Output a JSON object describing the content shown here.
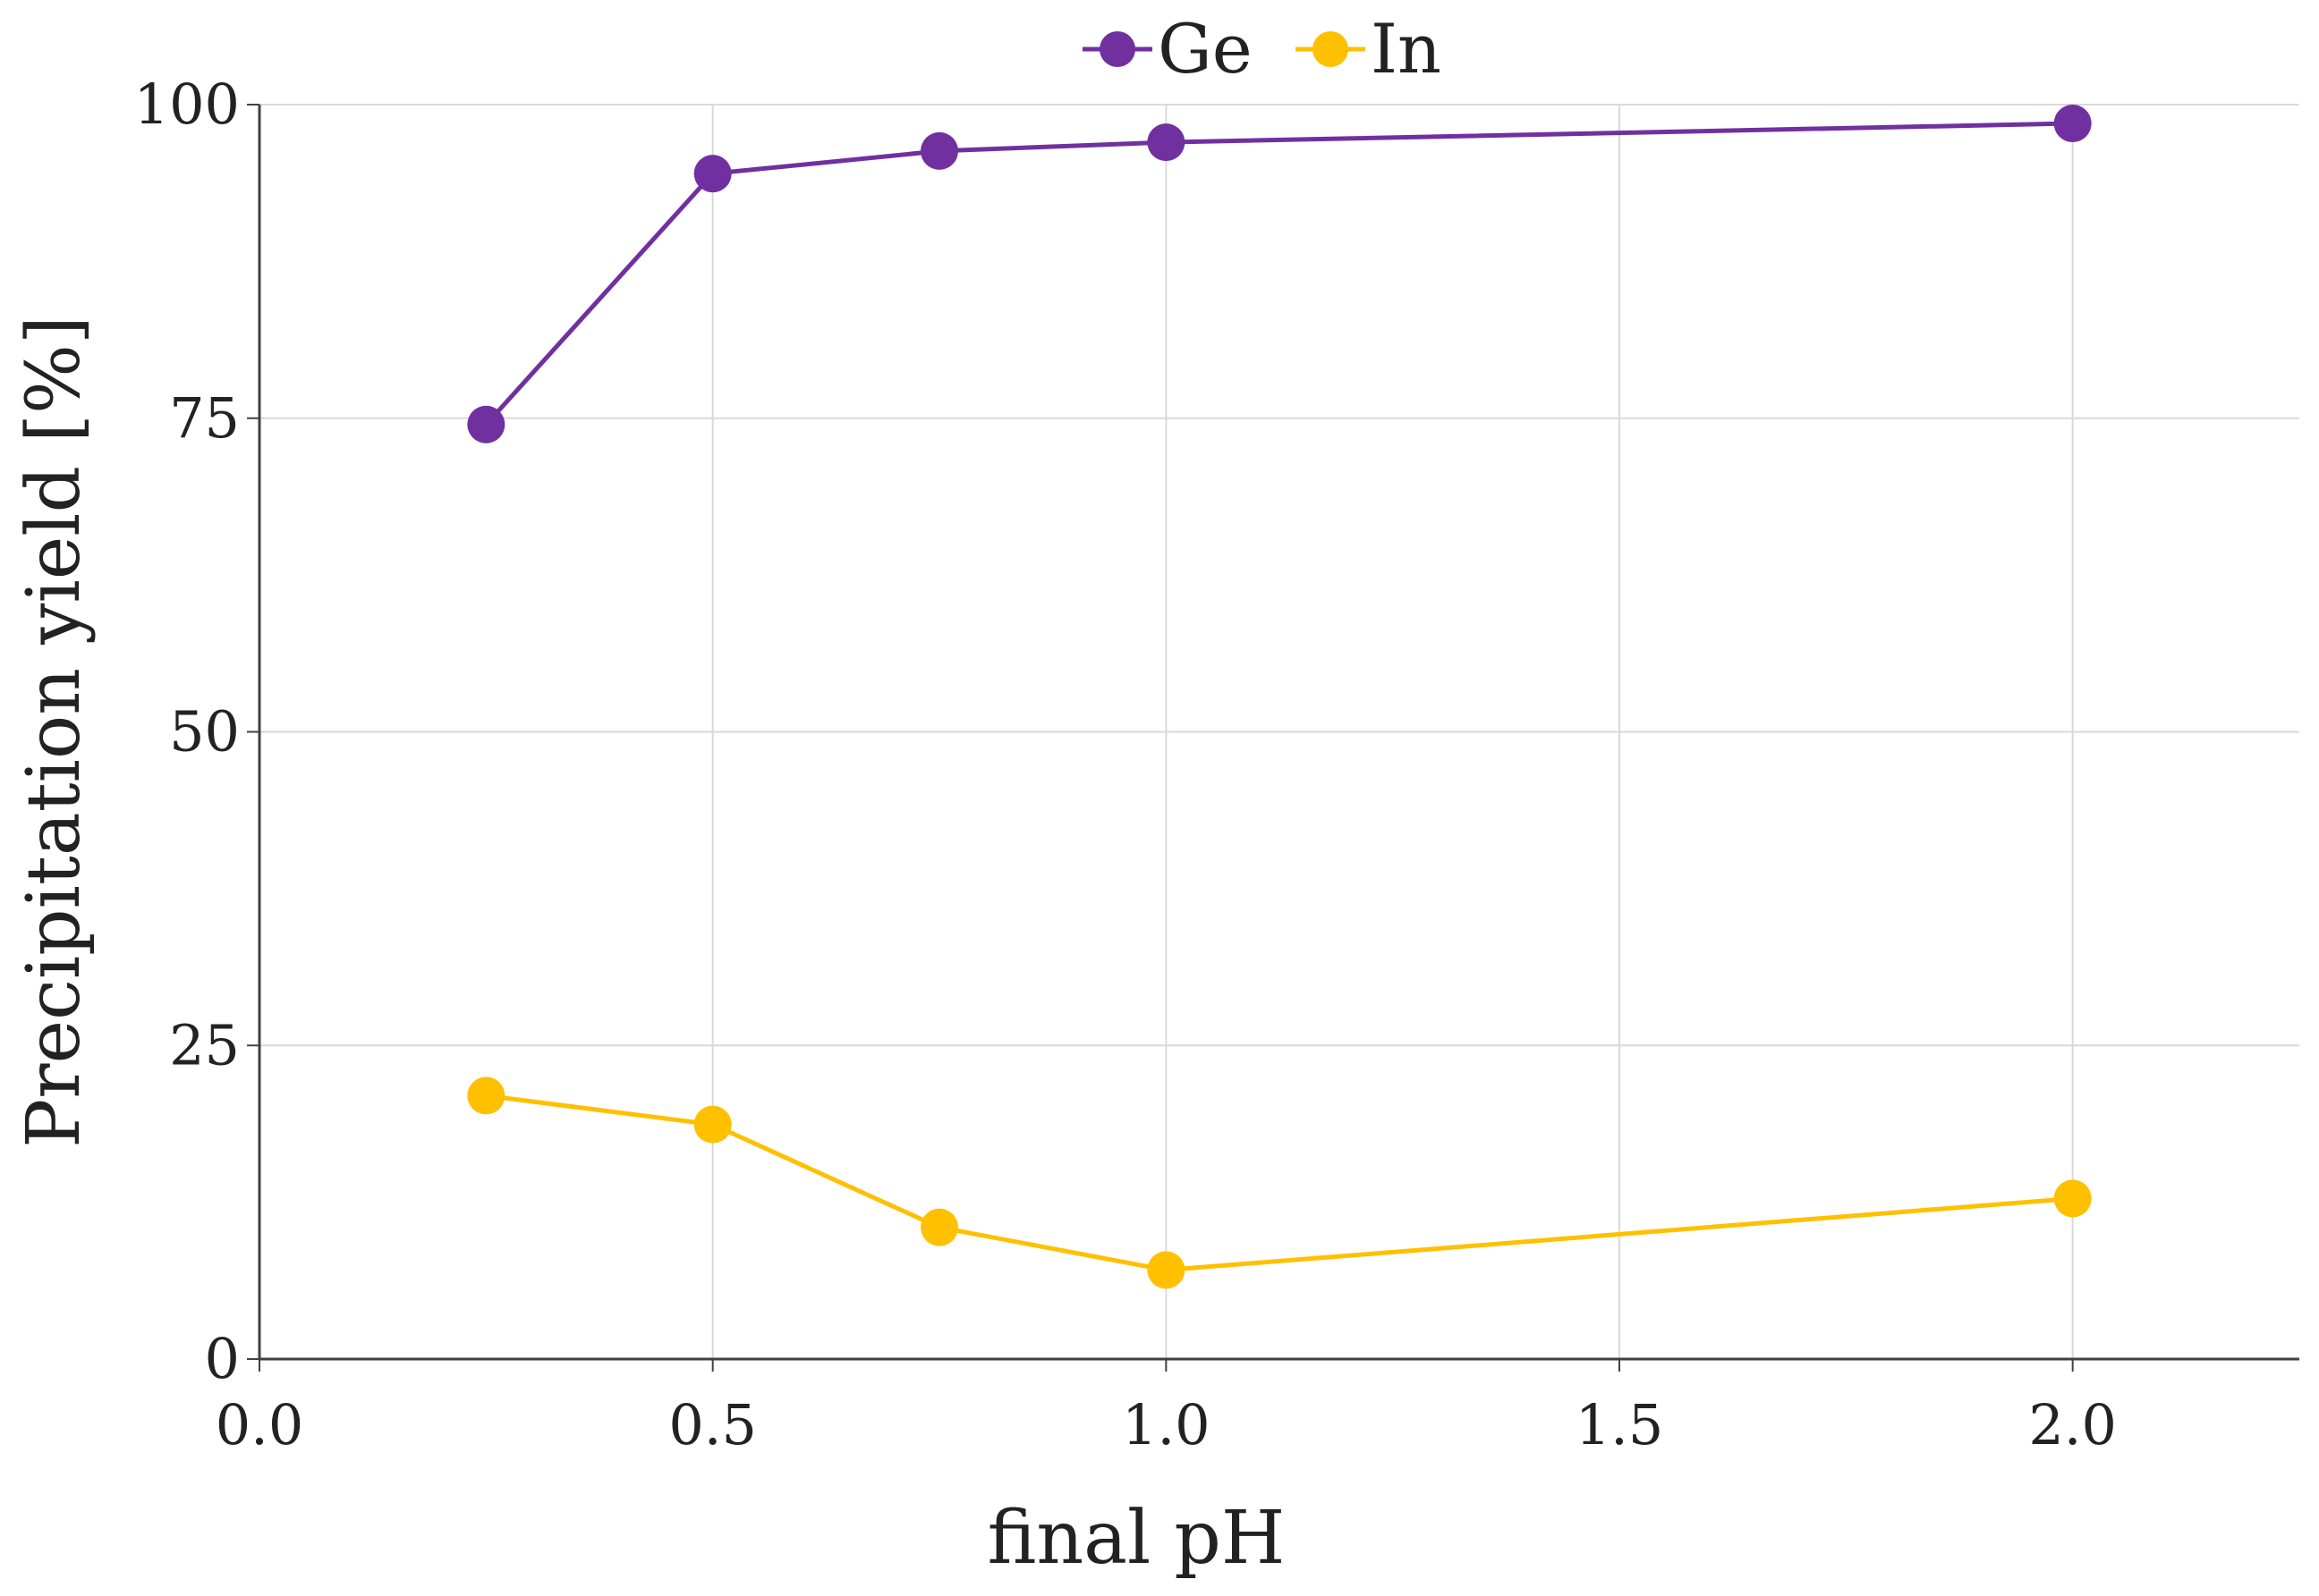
{
  "chart_data": {
    "type": "line",
    "title": "",
    "xlabel": "final pH",
    "ylabel": "Precipitation yield [%]",
    "xlim": [
      0,
      2.25
    ],
    "ylim": [
      0,
      100
    ],
    "x_ticks": [
      0.0,
      0.5,
      1.0,
      1.5,
      2.0
    ],
    "x_tick_labels": [
      "0.0",
      "0.5",
      "1.0",
      "1.5",
      "2.0"
    ],
    "y_ticks": [
      0,
      25,
      50,
      75,
      100
    ],
    "y_tick_labels": [
      "0",
      "25",
      "50",
      "75",
      "100"
    ],
    "grid": true,
    "legend_position": "top-center",
    "series": [
      {
        "name": "Ge",
        "color": "#7030a0",
        "x": [
          0.25,
          0.5,
          0.75,
          1.0,
          2.0
        ],
        "y": [
          74.5,
          94.5,
          96.3,
          97.0,
          98.5
        ]
      },
      {
        "name": "In",
        "color": "#ffc000",
        "x": [
          0.25,
          0.5,
          0.75,
          1.0,
          2.0
        ],
        "y": [
          21.0,
          18.7,
          10.5,
          7.1,
          12.8
        ]
      }
    ]
  }
}
